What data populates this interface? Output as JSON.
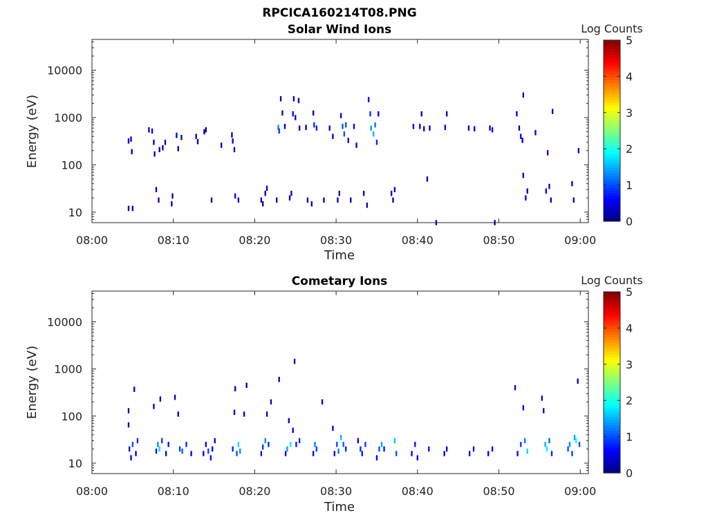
{
  "figure": {
    "title": "RPCICA160214T08.PNG"
  },
  "colormap": "jet",
  "chart_data": [
    {
      "type": "heatmap",
      "title": "Solar Wind Ions",
      "xlabel": "Time",
      "ylabel": "Energy (eV)",
      "y_scale": "log",
      "ylim": [
        6,
        45000
      ],
      "x_range_minutes": [
        0,
        61
      ],
      "x_ticks": [
        "08:00",
        "08:10",
        "08:20",
        "08:30",
        "08:40",
        "08:50",
        "09:00"
      ],
      "y_ticks": [
        {
          "value": 10,
          "label": "10"
        },
        {
          "value": 100,
          "label": "100"
        },
        {
          "value": 1000,
          "label": "1000"
        },
        {
          "value": 10000,
          "label": "10000"
        }
      ],
      "colorbar": {
        "label": "Log Counts",
        "min": 0,
        "max": 5,
        "ticks": [
          "0",
          "1",
          "2",
          "3",
          "4",
          "5"
        ]
      },
      "cells": [
        [
          4.5,
          320,
          0.3
        ],
        [
          4.5,
          12,
          0.2
        ],
        [
          4.8,
          350,
          0.5
        ],
        [
          4.9,
          190,
          0.3
        ],
        [
          5.0,
          12,
          0.2
        ],
        [
          7.0,
          550,
          0.3
        ],
        [
          7.4,
          520,
          0.5
        ],
        [
          7.6,
          300,
          0.4
        ],
        [
          7.7,
          170,
          0.3
        ],
        [
          7.9,
          30,
          0.3
        ],
        [
          8.2,
          18,
          0.3
        ],
        [
          8.3,
          210,
          0.3
        ],
        [
          8.7,
          230,
          0.3
        ],
        [
          9.0,
          300,
          0.2
        ],
        [
          9.8,
          15,
          0.3
        ],
        [
          9.9,
          22,
          0.3
        ],
        [
          10.4,
          420,
          0.3
        ],
        [
          10.6,
          220,
          0.3
        ],
        [
          11.0,
          380,
          0.3
        ],
        [
          12.8,
          400,
          0.3
        ],
        [
          13.0,
          310,
          0.3
        ],
        [
          13.8,
          500,
          0.3
        ],
        [
          14.0,
          550,
          0.3
        ],
        [
          14.7,
          18,
          0.3
        ],
        [
          15.9,
          260,
          0.3
        ],
        [
          17.2,
          430,
          0.3
        ],
        [
          17.3,
          320,
          0.4
        ],
        [
          17.5,
          210,
          0.3
        ],
        [
          17.6,
          22,
          0.5
        ],
        [
          18.0,
          18,
          0.3
        ],
        [
          20.8,
          18,
          0.3
        ],
        [
          21.0,
          15,
          0.3
        ],
        [
          21.3,
          25,
          0.4
        ],
        [
          21.5,
          32,
          0.3
        ],
        [
          22.7,
          18,
          0.3
        ],
        [
          22.9,
          620,
          1.3
        ],
        [
          23.0,
          520,
          0.9
        ],
        [
          23.2,
          2500,
          0.3
        ],
        [
          23.4,
          1250,
          0.3
        ],
        [
          23.7,
          650,
          0.5
        ],
        [
          24.3,
          20,
          0.4
        ],
        [
          24.5,
          25,
          0.5
        ],
        [
          24.7,
          1200,
          0.5
        ],
        [
          24.8,
          2500,
          0.3
        ],
        [
          25.0,
          1000,
          0.5
        ],
        [
          25.4,
          2300,
          0.3
        ],
        [
          25.5,
          600,
          0.3
        ],
        [
          26.3,
          620,
          0.3
        ],
        [
          26.5,
          18,
          0.3
        ],
        [
          27.0,
          15,
          0.3
        ],
        [
          27.3,
          700,
          0.8
        ],
        [
          27.6,
          600,
          0.8
        ],
        [
          27.2,
          1250,
          0.3
        ],
        [
          28.5,
          18,
          0.3
        ],
        [
          29.2,
          600,
          0.4
        ],
        [
          29.6,
          400,
          0.4
        ],
        [
          30.2,
          18,
          0.3
        ],
        [
          30.4,
          25,
          0.4
        ],
        [
          30.6,
          1100,
          0.5
        ],
        [
          30.8,
          650,
          1.0
        ],
        [
          31.0,
          450,
          1.0
        ],
        [
          31.2,
          700,
          1.0
        ],
        [
          31.5,
          330,
          0.3
        ],
        [
          31.8,
          18,
          0.3
        ],
        [
          32.2,
          650,
          0.5
        ],
        [
          32.5,
          260,
          0.3
        ],
        [
          33.4,
          25,
          0.3
        ],
        [
          33.8,
          14,
          0.3
        ],
        [
          34.0,
          2400,
          0.6
        ],
        [
          34.2,
          1200,
          0.9
        ],
        [
          34.3,
          600,
          1.4
        ],
        [
          34.6,
          450,
          1.5
        ],
        [
          34.8,
          700,
          1.2
        ],
        [
          35.0,
          300,
          0.8
        ],
        [
          35.2,
          1200,
          0.4
        ],
        [
          36.8,
          25,
          0.4
        ],
        [
          37.0,
          18,
          0.3
        ],
        [
          37.2,
          30,
          0.3
        ],
        [
          39.5,
          650,
          0.5
        ],
        [
          40.3,
          650,
          0.4
        ],
        [
          40.5,
          1200,
          0.3
        ],
        [
          40.8,
          580,
          0.3
        ],
        [
          41.2,
          50,
          0.3
        ],
        [
          41.5,
          600,
          0.3
        ],
        [
          42.3,
          6,
          0.3
        ],
        [
          43.4,
          620,
          0.5
        ],
        [
          43.6,
          1200,
          0.3
        ],
        [
          46.3,
          600,
          0.4
        ],
        [
          47.0,
          580,
          0.3
        ],
        [
          48.9,
          600,
          0.4
        ],
        [
          49.2,
          550,
          0.5
        ],
        [
          49.5,
          6,
          0.2
        ],
        [
          52.2,
          1200,
          0.4
        ],
        [
          52.5,
          600,
          0.4
        ],
        [
          52.7,
          400,
          0.6
        ],
        [
          52.9,
          330,
          0.4
        ],
        [
          53.0,
          3000,
          0.3
        ],
        [
          53.0,
          60,
          0.3
        ],
        [
          53.3,
          20,
          0.5
        ],
        [
          53.5,
          28,
          0.4
        ],
        [
          54.5,
          480,
          0.3
        ],
        [
          55.8,
          28,
          0.5
        ],
        [
          56.0,
          180,
          0.3
        ],
        [
          56.2,
          35,
          0.4
        ],
        [
          56.4,
          18,
          0.3
        ],
        [
          56.6,
          1350,
          0.3
        ],
        [
          59.0,
          40,
          0.6
        ],
        [
          59.2,
          18,
          0.3
        ],
        [
          59.8,
          200,
          0.3
        ]
      ]
    },
    {
      "type": "heatmap",
      "title": "Cometary Ions",
      "xlabel": "Time",
      "ylabel": "Energy (eV)",
      "y_scale": "log",
      "ylim": [
        6,
        45000
      ],
      "x_range_minutes": [
        0,
        61
      ],
      "x_ticks": [
        "08:00",
        "08:10",
        "08:20",
        "08:30",
        "08:40",
        "08:50",
        "09:00"
      ],
      "y_ticks": [
        {
          "value": 10,
          "label": "10"
        },
        {
          "value": 100,
          "label": "100"
        },
        {
          "value": 1000,
          "label": "1000"
        },
        {
          "value": 10000,
          "label": "10000"
        }
      ],
      "colorbar": {
        "label": "Log Counts",
        "min": 0,
        "max": 5,
        "ticks": [
          "0",
          "1",
          "2",
          "3",
          "4",
          "5"
        ]
      },
      "cells": [
        [
          4.5,
          130,
          0.3
        ],
        [
          4.5,
          65,
          0.3
        ],
        [
          4.6,
          20,
          0.7
        ],
        [
          4.8,
          13,
          0.5
        ],
        [
          5.0,
          25,
          1.0
        ],
        [
          5.2,
          370,
          0.4
        ],
        [
          5.4,
          16,
          0.6
        ],
        [
          5.6,
          30,
          0.8
        ],
        [
          7.6,
          160,
          0.3
        ],
        [
          7.9,
          18,
          0.7
        ],
        [
          8.1,
          25,
          1.3
        ],
        [
          8.3,
          20,
          1.7
        ],
        [
          8.4,
          230,
          0.3
        ],
        [
          8.6,
          30,
          0.9
        ],
        [
          9.1,
          16,
          0.6
        ],
        [
          9.4,
          25,
          0.7
        ],
        [
          10.2,
          250,
          0.3
        ],
        [
          10.6,
          110,
          0.3
        ],
        [
          10.8,
          20,
          0.9
        ],
        [
          11.1,
          18,
          1.1
        ],
        [
          11.6,
          25,
          0.8
        ],
        [
          12.2,
          16,
          0.5
        ],
        [
          13.7,
          16,
          0.5
        ],
        [
          14.0,
          25,
          0.6
        ],
        [
          14.3,
          18,
          0.9
        ],
        [
          14.6,
          13,
          0.7
        ],
        [
          14.8,
          20,
          0.5
        ],
        [
          15.1,
          30,
          0.4
        ],
        [
          17.3,
          20,
          0.8
        ],
        [
          17.5,
          120,
          0.3
        ],
        [
          17.6,
          380,
          0.3
        ],
        [
          17.8,
          16,
          1.0
        ],
        [
          18.0,
          25,
          1.7
        ],
        [
          18.2,
          18,
          1.3
        ],
        [
          18.7,
          110,
          0.4
        ],
        [
          19.0,
          450,
          0.3
        ],
        [
          20.8,
          16,
          0.7
        ],
        [
          21.0,
          22,
          0.9
        ],
        [
          21.3,
          30,
          1.3
        ],
        [
          21.5,
          110,
          0.4
        ],
        [
          21.7,
          25,
          0.8
        ],
        [
          22.0,
          200,
          0.3
        ],
        [
          23.0,
          600,
          0.3
        ],
        [
          23.8,
          16,
          0.6
        ],
        [
          24.0,
          20,
          1.4
        ],
        [
          24.2,
          80,
          0.5
        ],
        [
          24.4,
          25,
          1.8
        ],
        [
          24.7,
          50,
          0.5
        ],
        [
          24.9,
          1450,
          0.3
        ],
        [
          25.1,
          25,
          0.7
        ],
        [
          25.5,
          30,
          0.8
        ],
        [
          27.2,
          16,
          0.6
        ],
        [
          27.4,
          25,
          1.3
        ],
        [
          27.6,
          20,
          0.9
        ],
        [
          28.3,
          200,
          0.3
        ],
        [
          29.6,
          55,
          0.4
        ],
        [
          29.8,
          16,
          0.6
        ],
        [
          30.1,
          25,
          1.0
        ],
        [
          30.3,
          18,
          1.2
        ],
        [
          30.6,
          35,
          1.5
        ],
        [
          30.9,
          25,
          1.1
        ],
        [
          31.2,
          20,
          0.8
        ],
        [
          32.7,
          30,
          0.6
        ],
        [
          33.0,
          20,
          0.8
        ],
        [
          33.2,
          16,
          0.7
        ],
        [
          33.6,
          25,
          0.9
        ],
        [
          35.0,
          13,
          0.6
        ],
        [
          35.3,
          20,
          1.0
        ],
        [
          35.6,
          25,
          1.4
        ],
        [
          35.9,
          20,
          0.7
        ],
        [
          37.2,
          30,
          1.6
        ],
        [
          37.4,
          16,
          1.0
        ],
        [
          39.3,
          16,
          0.6
        ],
        [
          39.7,
          25,
          0.7
        ],
        [
          40.0,
          13,
          0.5
        ],
        [
          41.4,
          20,
          0.7
        ],
        [
          43.3,
          16,
          0.5
        ],
        [
          43.6,
          20,
          0.6
        ],
        [
          46.4,
          16,
          0.5
        ],
        [
          46.9,
          20,
          0.6
        ],
        [
          48.7,
          16,
          0.5
        ],
        [
          49.2,
          20,
          0.6
        ],
        [
          52.0,
          400,
          0.3
        ],
        [
          52.3,
          16,
          0.6
        ],
        [
          52.7,
          25,
          0.9
        ],
        [
          53.0,
          150,
          0.6
        ],
        [
          53.2,
          30,
          1.2
        ],
        [
          53.5,
          18,
          1.7
        ],
        [
          55.3,
          240,
          0.4
        ],
        [
          55.5,
          130,
          0.3
        ],
        [
          55.7,
          25,
          1.5
        ],
        [
          55.9,
          20,
          1.8
        ],
        [
          56.2,
          30,
          1.1
        ],
        [
          56.5,
          16,
          0.8
        ],
        [
          58.5,
          20,
          1.0
        ],
        [
          58.7,
          25,
          1.3
        ],
        [
          59.0,
          16,
          0.9
        ],
        [
          59.3,
          35,
          1.4
        ],
        [
          59.5,
          30,
          1.9
        ],
        [
          59.7,
          550,
          0.4
        ],
        [
          59.9,
          25,
          1.0
        ]
      ]
    }
  ]
}
